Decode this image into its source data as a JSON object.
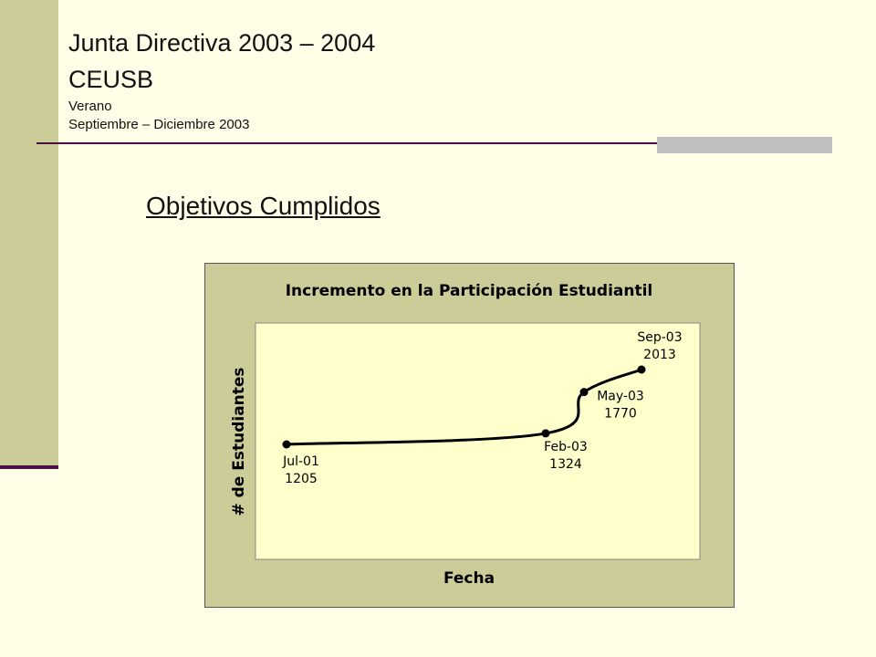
{
  "header": {
    "title": "Junta Directiva 2003 – 2004",
    "subtitle": "CEUSB",
    "season": "Verano",
    "period": "Septiembre – Diciembre 2003"
  },
  "section": {
    "title": "Objetivos Cumplidos"
  },
  "colors": {
    "background": "#fffee6",
    "sidebar": "#cccc99",
    "accent": "#4a1040",
    "chart_frame": "#cccc99",
    "plot_area": "#ffffcc",
    "line": "#000000"
  },
  "chart_data": {
    "type": "line",
    "title": "Incremento en la Participación Estudiantil",
    "xlabel": "Fecha",
    "ylabel": "# de Estudiantes",
    "grid": false,
    "legend": "none",
    "points": [
      {
        "label": "Jul-01",
        "value": 1205
      },
      {
        "label": "Feb-03",
        "value": 1324
      },
      {
        "label": "May-03",
        "value": 1770
      },
      {
        "label": "Sep-03",
        "value": 2013
      }
    ]
  }
}
